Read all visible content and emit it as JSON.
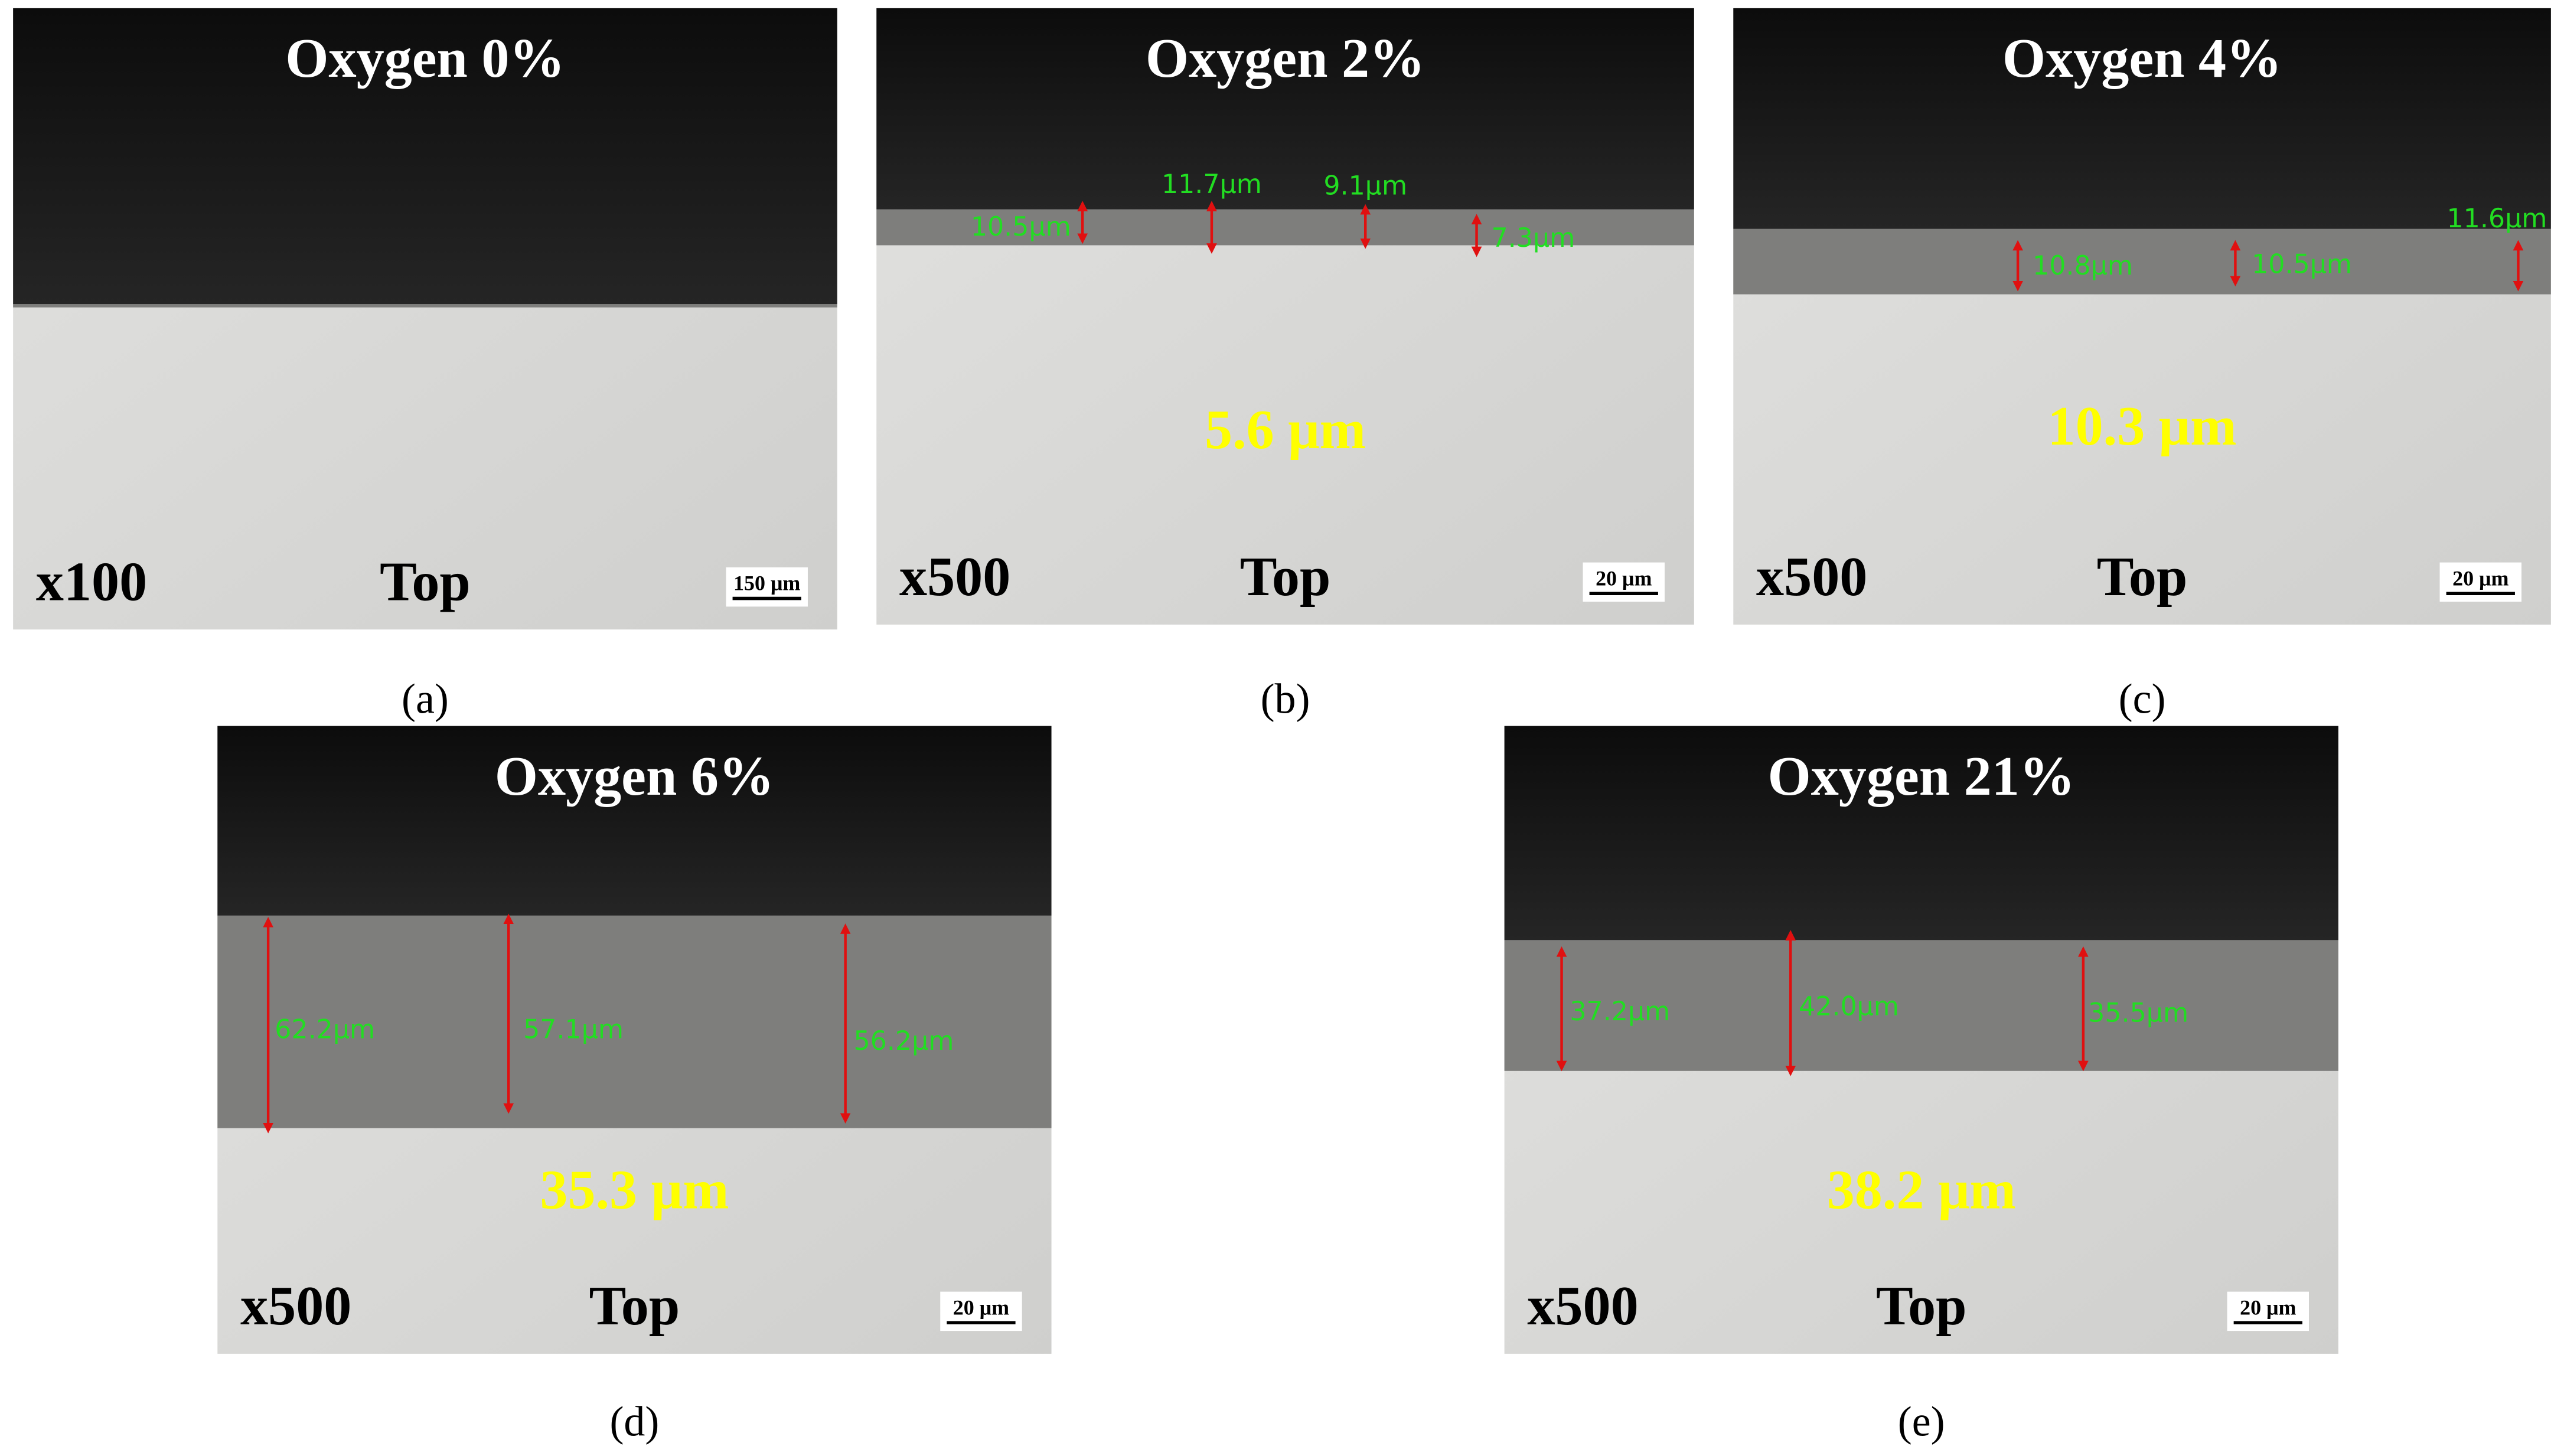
{
  "panels": [
    {
      "title": "Oxygen 0%",
      "magnification": "x100",
      "side": "Top",
      "scale_bar": "150 μm",
      "caption": "(a)",
      "thickness": null,
      "measurements": []
    },
    {
      "title": "Oxygen 2%",
      "magnification": "x500",
      "side": "Top",
      "scale_bar": "20 μm",
      "caption": "(b)",
      "thickness": "5.6 μm",
      "measurements": [
        "10.5μm",
        "11.7μm",
        "9.1μm",
        "7.3μm"
      ]
    },
    {
      "title": "Oxygen 4%",
      "magnification": "x500",
      "side": "Top",
      "scale_bar": "20 μm",
      "caption": "(c)",
      "thickness": "10.3 μm",
      "measurements": [
        "10.8μm",
        "10.5μm",
        "11.6μm"
      ]
    },
    {
      "title": "Oxygen 6%",
      "magnification": "x500",
      "side": "Top",
      "scale_bar": "20 μm",
      "caption": "(d)",
      "thickness": "35.3 μm",
      "measurements": [
        "62.2μm",
        "57.1μm",
        "56.2μm"
      ]
    },
    {
      "title": "Oxygen 21%",
      "magnification": "x500",
      "side": "Top",
      "scale_bar": "20 μm",
      "caption": "(e)",
      "thickness": "38.2 μm",
      "measurements": [
        "37.2μm",
        "42.0μm",
        "35.5μm"
      ]
    }
  ]
}
